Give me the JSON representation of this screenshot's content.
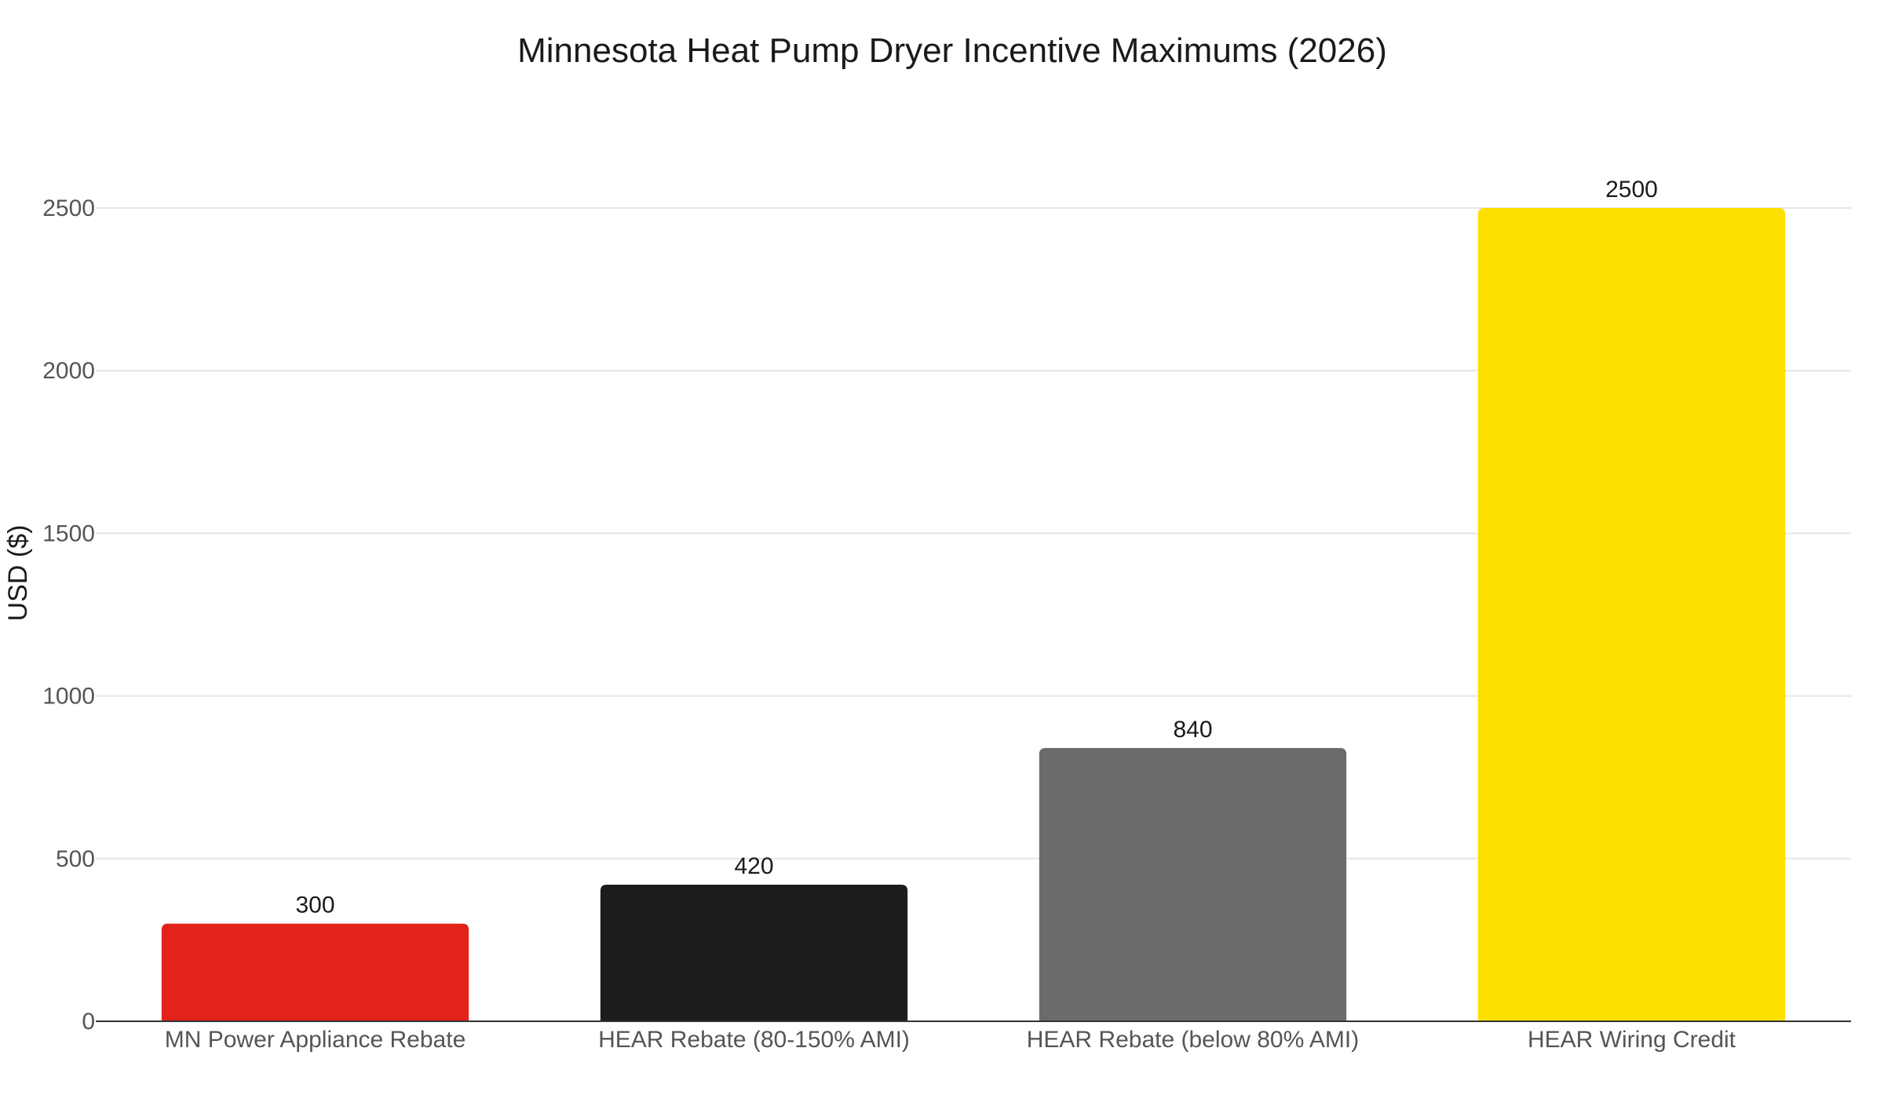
{
  "chart_data": {
    "type": "bar",
    "title": "Minnesota Heat Pump Dryer Incentive Maximums (2026)",
    "xlabel": "",
    "ylabel": "USD ($)",
    "categories": [
      "MN Power Appliance Rebate",
      "HEAR Rebate (80-150% AMI)",
      "HEAR Rebate (below 80% AMI)",
      "HEAR Wiring Credit"
    ],
    "values": [
      300,
      420,
      840,
      2500
    ],
    "data_labels": [
      "300",
      "420",
      "840",
      "2500"
    ],
    "colors": [
      "#e2231a",
      "#1c1c1c",
      "#6b6b6b",
      "#fce100"
    ],
    "ylim": [
      0,
      2500
    ],
    "yticks": [
      0,
      500,
      1000,
      1500,
      2000,
      2500
    ],
    "ytick_labels": [
      "0",
      "500",
      "1000",
      "1500",
      "2000",
      "2500"
    ],
    "grid": true,
    "legend": "none"
  }
}
